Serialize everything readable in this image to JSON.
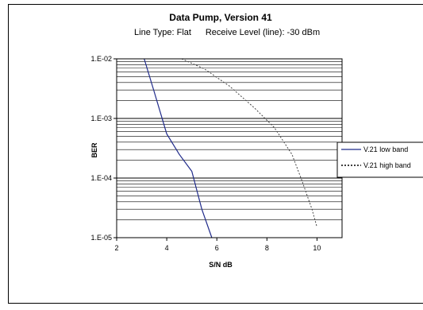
{
  "chart_data": {
    "type": "line",
    "title": "Data Pump, Version 41",
    "subtitle_line_type": "Line Type: Flat",
    "subtitle_receive_level": "Receive Level (line): -30 dBm",
    "xlabel": "S/N dB",
    "ylabel": "BER",
    "xlim": [
      2,
      11
    ],
    "ylim": [
      1e-05,
      0.01
    ],
    "y_scale": "log",
    "x_ticks": [
      2,
      4,
      6,
      8,
      10
    ],
    "x_tick_labels": [
      "2",
      "4",
      "6",
      "8",
      "10"
    ],
    "y_ticks": [
      0.01,
      0.001,
      0.0001,
      1e-05
    ],
    "y_tick_labels": [
      "1.E-02",
      "1.E-03",
      "1.E-04",
      "1.E-05"
    ],
    "grid": "horizontal log gridlines",
    "legend_position": "right",
    "series": [
      {
        "name": "V.21 low band",
        "color": "#1f2a8a",
        "style": "solid",
        "x": [
          3.1,
          3.5,
          4.0,
          4.5,
          5.0,
          5.4,
          5.8
        ],
        "y": [
          0.01,
          0.0028,
          0.00055,
          0.00025,
          0.00013,
          3e-05,
          1e-05
        ]
      },
      {
        "name": "V.21 high band",
        "color": "#444444",
        "style": "dotted",
        "x": [
          4.6,
          5.5,
          6.5,
          7.5,
          8.3,
          9.0,
          9.4,
          9.8,
          10.0
        ],
        "y": [
          0.01,
          0.0068,
          0.0035,
          0.0015,
          0.0007,
          0.00025,
          9e-05,
          3e-05,
          1.5e-05
        ]
      }
    ]
  }
}
